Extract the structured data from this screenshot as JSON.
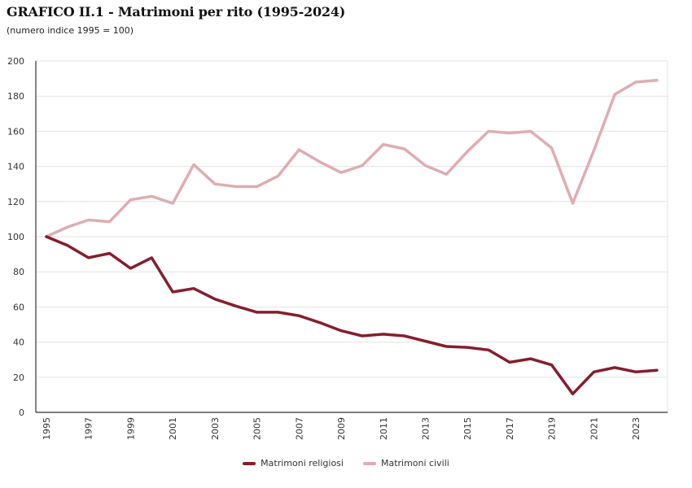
{
  "header": {
    "title": "GRAFICO II.1 - Matrimoni per rito (1995-2024)",
    "subtitle": "(numero indice 1995 = 100)"
  },
  "colors": {
    "religiosi": "#851e2d",
    "civili": "#deadb2",
    "grid": "#e3e3e3",
    "axis": "#333333"
  },
  "chart_data": {
    "type": "line",
    "title": "GRAFICO II.1 - Matrimoni per rito (1995-2024)",
    "subtitle": "(numero indice 1995 = 100)",
    "xlabel": "",
    "ylabel": "",
    "ylim": [
      0,
      200
    ],
    "yticks": [
      0,
      20,
      40,
      60,
      80,
      100,
      120,
      140,
      160,
      180,
      200
    ],
    "xticks": [
      "1995",
      "1997",
      "1999",
      "2001",
      "2003",
      "2005",
      "2007",
      "2009",
      "2011",
      "2013",
      "2015",
      "2017",
      "2019",
      "2021",
      "2023"
    ],
    "grid": true,
    "legend_position": "bottom-center",
    "x": [
      1995,
      1996,
      1997,
      1998,
      1999,
      2000,
      2001,
      2002,
      2003,
      2004,
      2005,
      2006,
      2007,
      2008,
      2009,
      2010,
      2011,
      2012,
      2013,
      2014,
      2015,
      2016,
      2017,
      2018,
      2019,
      2020,
      2021,
      2022,
      2023,
      2024
    ],
    "series": [
      {
        "name": "Matrimoni religiosi",
        "color_key": "religiosi",
        "values": [
          100,
          95,
          88,
          90.5,
          82,
          88,
          68.5,
          70.5,
          64.5,
          60.5,
          57,
          57,
          55,
          51,
          46.5,
          43.5,
          44.5,
          43.5,
          40.5,
          37.5,
          37,
          35.5,
          28.5,
          30.5,
          27,
          10.5,
          23,
          25.5,
          23,
          24
        ]
      },
      {
        "name": "Matrimoni civili",
        "color_key": "civili",
        "values": [
          100,
          105.5,
          109.5,
          108.5,
          121,
          123,
          119,
          141,
          130,
          128.5,
          128.5,
          134.5,
          149.5,
          142.5,
          136.5,
          140.5,
          152.5,
          150,
          140.5,
          135.5,
          148.5,
          160,
          159,
          160,
          150.5,
          119,
          149,
          181,
          188,
          189
        ]
      }
    ]
  }
}
